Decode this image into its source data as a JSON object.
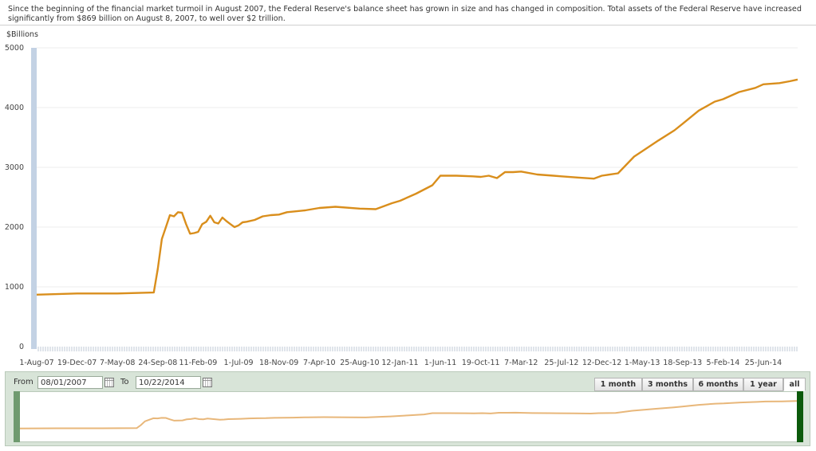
{
  "intro": "Since the beginning of the financial market turmoil in August 2007, the Federal Reserve's balance sheet has grown in size and has changed in composition. Total assets of the Federal Reserve have increased significantly from $869 billion on August 8, 2007, to well over $2 trillion.",
  "range_selector": {
    "from_label": "From",
    "from_value": "08/01/2007",
    "to_label": "To",
    "to_value": "10/22/2014",
    "buttons": [
      "1 month",
      "3 months",
      "6 months",
      "1 year",
      "all"
    ],
    "active_button": "all"
  },
  "colors": {
    "line": "#d98e1c",
    "navigator_line": "#e8b77a",
    "navigator_bg": "#d8e4d8",
    "left_handle": "#6f9a6f",
    "right_handle": "#0b5a0b",
    "axis_bar": "#c3d2e4"
  },
  "chart_data": {
    "type": "line",
    "title": "",
    "ylabel": "$Billions",
    "xlabel": "",
    "ylim": [
      0,
      5000
    ],
    "yticks": [
      0,
      1000,
      2000,
      3000,
      4000,
      5000
    ],
    "grid": true,
    "x_start": "1-Aug-07",
    "x_end": "22-Oct-14",
    "xtick_labels": [
      "1-Aug-07",
      "19-Dec-07",
      "7-May-08",
      "24-Sep-08",
      "11-Feb-09",
      "1-Jul-09",
      "18-Nov-09",
      "7-Apr-10",
      "25-Aug-10",
      "12-Jan-11",
      "1-Jun-11",
      "19-Oct-11",
      "7-Mar-12",
      "25-Jul-12",
      "12-Dec-12",
      "1-May-13",
      "18-Sep-13",
      "5-Feb-14",
      "25-Jun-14"
    ],
    "series": [
      {
        "x": [
          "1-Aug-07",
          "19-Dec-07",
          "7-May-08",
          "10-Sep-08",
          "24-Sep-08",
          "8-Oct-08",
          "22-Oct-08",
          "5-Nov-08",
          "19-Nov-08",
          "3-Dec-08",
          "17-Dec-08",
          "31-Dec-08",
          "14-Jan-09",
          "28-Jan-09",
          "11-Feb-09",
          "25-Feb-09",
          "11-Mar-09",
          "25-Mar-09",
          "8-Apr-09",
          "22-Apr-09",
          "6-May-09",
          "20-May-09",
          "3-Jun-09",
          "17-Jun-09",
          "1-Jul-09",
          "15-Jul-09",
          "29-Jul-09",
          "26-Aug-09",
          "23-Sep-09",
          "21-Oct-09",
          "18-Nov-09",
          "16-Dec-09",
          "17-Feb-10",
          "7-Apr-10",
          "2-Jun-10",
          "25-Aug-10",
          "20-Oct-10",
          "15-Dec-10",
          "12-Jan-11",
          "9-Mar-11",
          "4-May-11",
          "1-Jun-11",
          "27-Jul-11",
          "21-Sep-11",
          "19-Oct-11",
          "16-Nov-11",
          "14-Dec-11",
          "11-Jan-12",
          "8-Feb-12",
          "7-Mar-12",
          "2-May-12",
          "27-Jun-12",
          "25-Jul-12",
          "19-Sep-12",
          "14-Nov-12",
          "12-Dec-12",
          "6-Feb-13",
          "3-Apr-13",
          "1-May-13",
          "26-Jun-13",
          "21-Aug-13",
          "18-Sep-13",
          "13-Nov-13",
          "8-Jan-14",
          "5-Feb-14",
          "2-Apr-14",
          "28-May-14",
          "25-Jun-14",
          "20-Aug-14",
          "24-Sep-14",
          "22-Oct-14"
        ],
        "values": [
          869,
          890,
          890,
          905,
          1300,
          1800,
          2000,
          2200,
          2180,
          2250,
          2240,
          2050,
          1890,
          1900,
          1920,
          2050,
          2090,
          2190,
          2080,
          2060,
          2160,
          2100,
          2050,
          2000,
          2030,
          2080,
          2090,
          2120,
          2180,
          2200,
          2210,
          2250,
          2280,
          2320,
          2340,
          2310,
          2300,
          2400,
          2440,
          2560,
          2700,
          2860,
          2860,
          2850,
          2840,
          2860,
          2820,
          2920,
          2920,
          2930,
          2880,
          2860,
          2850,
          2830,
          2810,
          2860,
          2900,
          3180,
          3270,
          3450,
          3620,
          3730,
          3950,
          4100,
          4140,
          4260,
          4330,
          4390,
          4410,
          4440,
          4470
        ]
      }
    ],
    "navigator_ylim": [
      0,
      5000
    ]
  }
}
